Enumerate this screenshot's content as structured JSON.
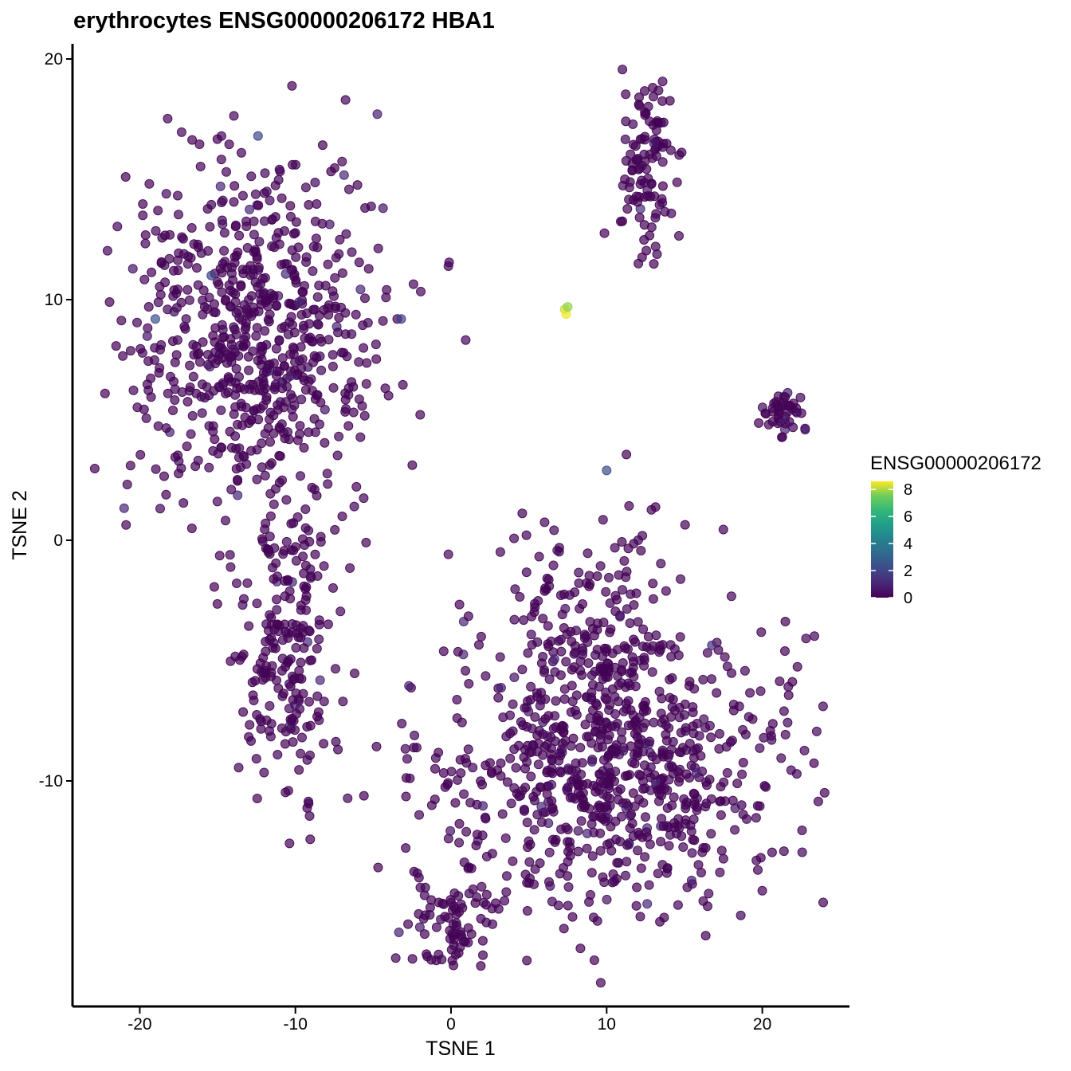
{
  "chart_data": {
    "type": "scatter",
    "title": "erythrocytes ENSG00000206172 HBA1",
    "xlabel": "TSNE 1",
    "ylabel": "TSNE 2",
    "xlim": [
      -24.2,
      25.8
    ],
    "ylim": [
      -19.5,
      20.7
    ],
    "x_ticks": [
      -20,
      -10,
      0,
      10,
      20
    ],
    "x_tick_labels": [
      "-20",
      "-10",
      "0",
      "10",
      "20"
    ],
    "y_ticks": [
      -10,
      0,
      10,
      20
    ],
    "y_tick_labels": [
      "-10",
      "0",
      "10",
      "20"
    ],
    "grid": false,
    "legend": {
      "title": "ENSG00000206172",
      "position": "right",
      "scale": "viridis",
      "range": [
        0,
        8.6
      ],
      "ticks": [
        0,
        2,
        4,
        6,
        8
      ],
      "tick_labels": [
        "0",
        "2",
        "4",
        "6",
        "8"
      ]
    },
    "colors": {
      "low": "#440154",
      "mid": "#21908C",
      "high": "#FDE725"
    },
    "clusters": [
      {
        "label": "upper-left cluster",
        "cx": -12.5,
        "cy": 8.5,
        "sx": 4.2,
        "sy": 3.6,
        "n": 700
      },
      {
        "label": "left tail",
        "cx": -10.5,
        "cy": -4.5,
        "sx": 1.5,
        "sy": 3.0,
        "n": 220
      },
      {
        "label": "lower-right cluster",
        "cx": 10.5,
        "cy": -9.5,
        "sx": 5.5,
        "sy": 3.0,
        "n": 800
      },
      {
        "label": "lower-right upper lobe",
        "cx": 9.0,
        "cy": -3.5,
        "sx": 3.0,
        "sy": 2.5,
        "n": 160
      },
      {
        "label": "lower-left tail",
        "cx": 0.0,
        "cy": -16.0,
        "sx": 1.5,
        "sy": 1.0,
        "n": 80
      },
      {
        "label": "top-right strand",
        "cx": 12.5,
        "cy": 15.5,
        "sx": 0.8,
        "sy": 1.8,
        "n": 110
      },
      {
        "label": "right small cluster",
        "cx": 21.5,
        "cy": 5.3,
        "sx": 0.7,
        "sy": 0.6,
        "n": 45
      }
    ],
    "highlight_points": [
      {
        "x": 7.3,
        "y": 9.6,
        "value": 8.2
      },
      {
        "x": 7.4,
        "y": 9.4,
        "value": 8.5
      },
      {
        "x": 7.5,
        "y": 9.7,
        "value": 7.8
      },
      {
        "x": -12.4,
        "y": 16.8,
        "value": 2.1
      },
      {
        "x": -19.0,
        "y": 9.2,
        "value": 2.4
      },
      {
        "x": -15.4,
        "y": 11.0,
        "value": 2.0
      },
      {
        "x": 10.0,
        "y": 2.9,
        "value": 2.2
      },
      {
        "x": -3.2,
        "y": 9.2,
        "value": 1.8
      }
    ]
  }
}
